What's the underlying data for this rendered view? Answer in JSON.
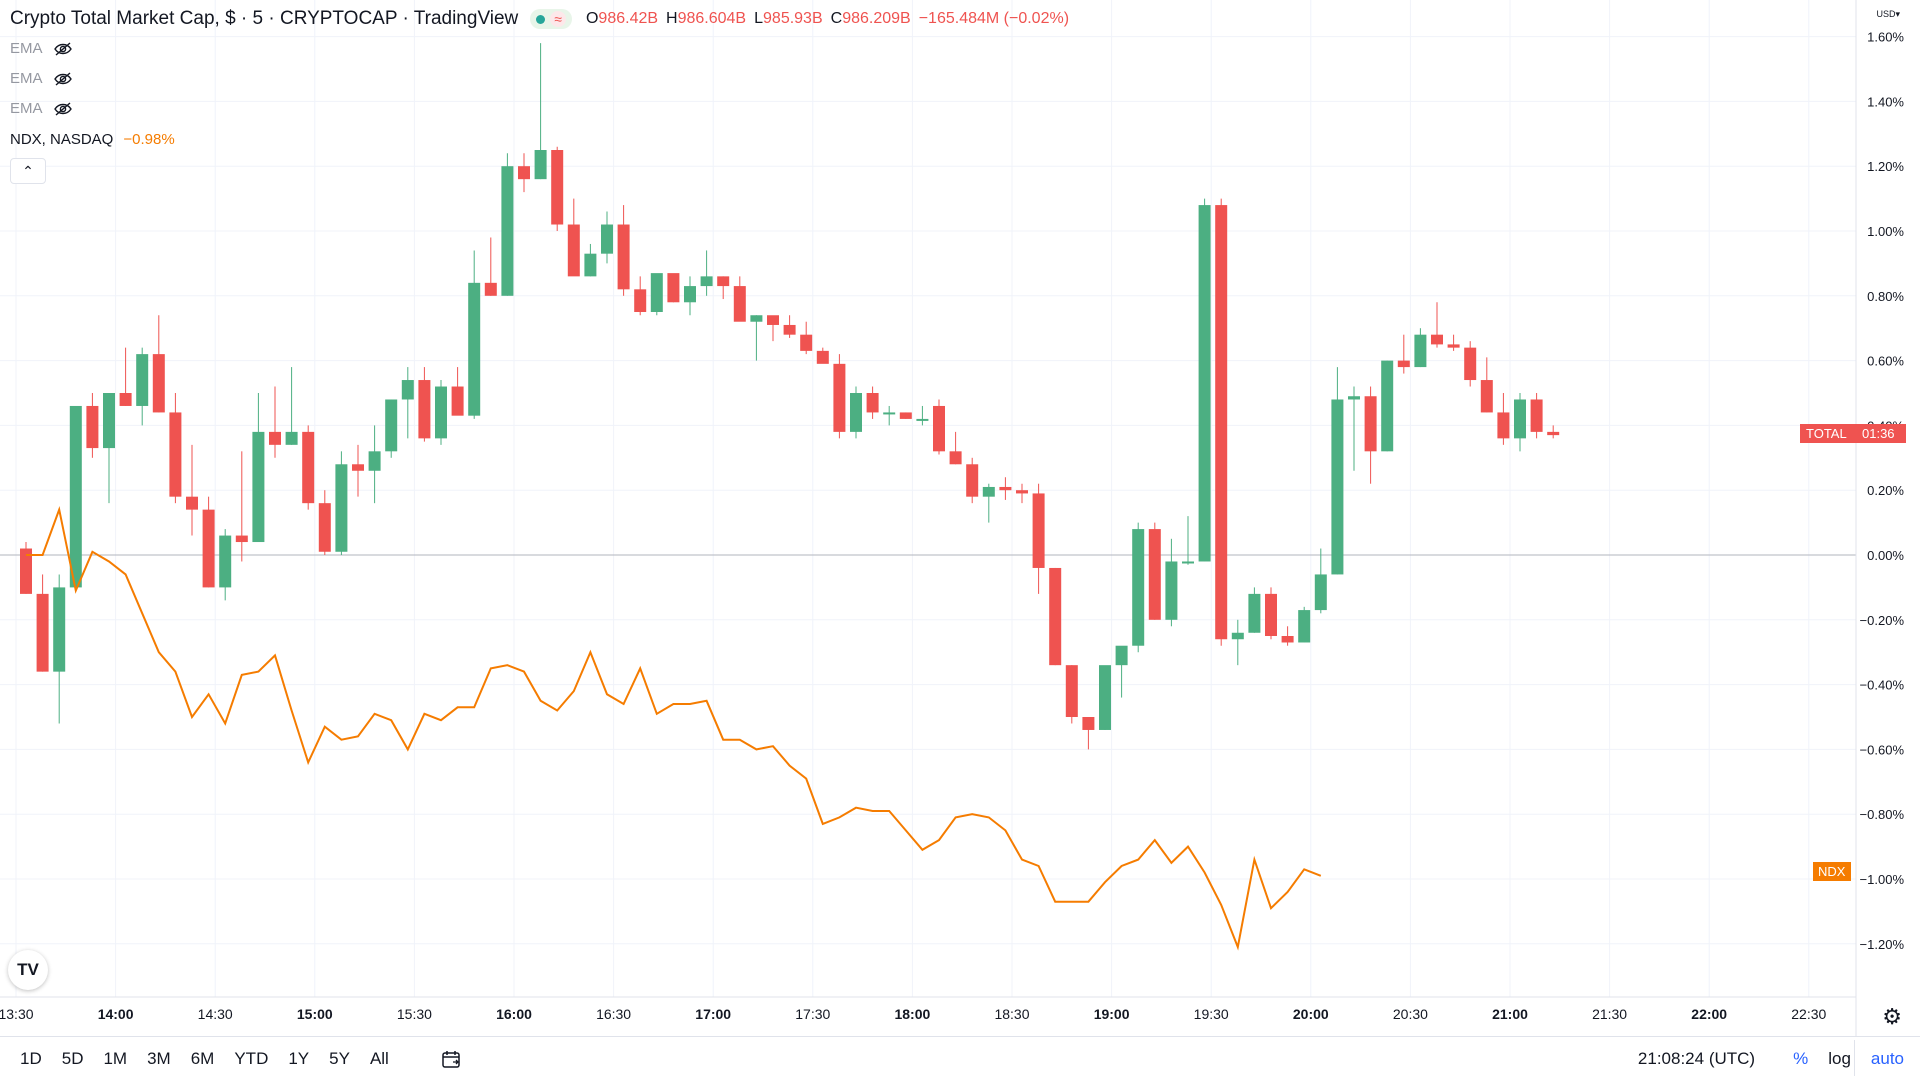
{
  "legend": {
    "title": "Crypto Total Market Cap, $ · 5 · CRYPTOCAP · TradingView",
    "ohlc": [
      {
        "label": "O",
        "value": "986.42B"
      },
      {
        "label": "H",
        "value": "986.604B"
      },
      {
        "label": "L",
        "value": "985.93B"
      },
      {
        "label": "C",
        "value": "986.209B"
      }
    ],
    "change": "−165.484M (−0.02%)",
    "indicators": [
      "EMA",
      "EMA",
      "EMA"
    ],
    "compare_symbol": "NDX, NASDAQ",
    "compare_change": "−0.98%",
    "collapse_glyph": "⌃"
  },
  "price_scale": {
    "currency": "USD",
    "labels": [
      "1.60%",
      "1.40%",
      "1.20%",
      "1.00%",
      "0.80%",
      "0.60%",
      "0.40%",
      "0.20%",
      "0.00%",
      "−0.20%",
      "−0.40%",
      "−0.60%",
      "−0.80%",
      "−1.00%",
      "−1.20%"
    ]
  },
  "time_scale": {
    "labels": [
      "13:30",
      "14:00",
      "14:30",
      "15:00",
      "15:30",
      "16:00",
      "16:30",
      "17:00",
      "17:30",
      "18:00",
      "18:30",
      "19:00",
      "19:30",
      "20:00",
      "20:30",
      "21:00",
      "21:30",
      "22:00",
      "22:30"
    ]
  },
  "badges": {
    "total_label": "TOTAL",
    "total_countdown": "01:36",
    "total_color": "#ef5350",
    "ndx_label": "NDX",
    "ndx_color": "#f57c00"
  },
  "bottom_bar": {
    "ranges": [
      "1D",
      "5D",
      "1M",
      "3M",
      "6M",
      "YTD",
      "1Y",
      "5Y",
      "All"
    ],
    "clock": "21:08:24 (UTC)",
    "pct": "%",
    "log": "log",
    "auto": "auto"
  },
  "logo_text": "TV",
  "colors": {
    "up": "#26a69a",
    "up_body": "#4caf82",
    "down": "#ef5350",
    "ndx_line": "#f57c00",
    "grid": "#f0f3fa"
  },
  "chart_data": {
    "type": "candlestick+line",
    "symbol": "TOTAL (Crypto Total Market Cap)",
    "y_unit": "% change",
    "ylim": [
      -1.3,
      1.62
    ],
    "x_start": "13:30",
    "x_step_minutes": 5,
    "candles_ohlc_pct": [
      [
        0.02,
        0.04,
        -0.12,
        -0.12
      ],
      [
        -0.12,
        -0.06,
        -0.36,
        -0.36
      ],
      [
        -0.36,
        -0.06,
        -0.52,
        -0.1
      ],
      [
        -0.1,
        0.46,
        -0.1,
        0.46
      ],
      [
        0.46,
        0.5,
        0.3,
        0.33
      ],
      [
        0.33,
        0.5,
        0.16,
        0.5
      ],
      [
        0.5,
        0.64,
        0.46,
        0.46
      ],
      [
        0.46,
        0.64,
        0.4,
        0.62
      ],
      [
        0.62,
        0.74,
        0.44,
        0.44
      ],
      [
        0.44,
        0.5,
        0.16,
        0.18
      ],
      [
        0.18,
        0.34,
        0.06,
        0.14
      ],
      [
        0.14,
        0.18,
        -0.1,
        -0.1
      ],
      [
        -0.1,
        0.08,
        -0.14,
        0.06
      ],
      [
        0.06,
        0.32,
        -0.02,
        0.04
      ],
      [
        0.04,
        0.5,
        0.04,
        0.38
      ],
      [
        0.38,
        0.52,
        0.3,
        0.34
      ],
      [
        0.34,
        0.58,
        0.34,
        0.38
      ],
      [
        0.38,
        0.4,
        0.14,
        0.16
      ],
      [
        0.16,
        0.2,
        0.0,
        0.01
      ],
      [
        0.01,
        0.32,
        0.0,
        0.28
      ],
      [
        0.28,
        0.34,
        0.18,
        0.26
      ],
      [
        0.26,
        0.4,
        0.16,
        0.32
      ],
      [
        0.32,
        0.48,
        0.3,
        0.48
      ],
      [
        0.48,
        0.58,
        0.36,
        0.54
      ],
      [
        0.54,
        0.58,
        0.35,
        0.36
      ],
      [
        0.36,
        0.54,
        0.34,
        0.52
      ],
      [
        0.52,
        0.58,
        0.44,
        0.43
      ],
      [
        0.43,
        0.94,
        0.42,
        0.84
      ],
      [
        0.84,
        0.98,
        0.8,
        0.8
      ],
      [
        0.8,
        1.24,
        0.8,
        1.2
      ],
      [
        1.2,
        1.24,
        1.12,
        1.16
      ],
      [
        1.16,
        1.58,
        1.16,
        1.25
      ],
      [
        1.25,
        1.26,
        1.0,
        1.02
      ],
      [
        1.02,
        1.1,
        0.97,
        0.86
      ],
      [
        0.86,
        0.96,
        0.86,
        0.93
      ],
      [
        0.93,
        1.06,
        0.9,
        1.02
      ],
      [
        1.02,
        1.08,
        0.8,
        0.82
      ],
      [
        0.82,
        0.86,
        0.74,
        0.75
      ],
      [
        0.75,
        0.84,
        0.74,
        0.87
      ],
      [
        0.87,
        0.86,
        0.78,
        0.78
      ],
      [
        0.78,
        0.86,
        0.74,
        0.83
      ],
      [
        0.83,
        0.94,
        0.8,
        0.86
      ],
      [
        0.86,
        0.86,
        0.79,
        0.83
      ],
      [
        0.83,
        0.86,
        0.74,
        0.72
      ],
      [
        0.72,
        0.74,
        0.6,
        0.74
      ],
      [
        0.74,
        0.72,
        0.66,
        0.71
      ],
      [
        0.71,
        0.74,
        0.67,
        0.68
      ],
      [
        0.68,
        0.72,
        0.62,
        0.63
      ],
      [
        0.63,
        0.64,
        0.6,
        0.59
      ],
      [
        0.59,
        0.62,
        0.36,
        0.38
      ],
      [
        0.38,
        0.52,
        0.36,
        0.5
      ],
      [
        0.5,
        0.52,
        0.42,
        0.44
      ],
      [
        0.44,
        0.46,
        0.4,
        0.44
      ],
      [
        0.44,
        0.44,
        0.42,
        0.42
      ],
      [
        0.42,
        0.46,
        0.4,
        0.42
      ],
      [
        0.46,
        0.48,
        0.31,
        0.32
      ],
      [
        0.32,
        0.38,
        0.28,
        0.28
      ],
      [
        0.28,
        0.3,
        0.16,
        0.18
      ],
      [
        0.18,
        0.22,
        0.1,
        0.21
      ],
      [
        0.21,
        0.24,
        0.17,
        0.2
      ],
      [
        0.2,
        0.22,
        0.16,
        0.19
      ],
      [
        0.19,
        0.22,
        -0.12,
        -0.04
      ],
      [
        -0.04,
        -0.04,
        -0.34,
        -0.34
      ],
      [
        -0.34,
        -0.34,
        -0.52,
        -0.5
      ],
      [
        -0.5,
        -0.5,
        -0.6,
        -0.54
      ],
      [
        -0.54,
        -0.38,
        -0.54,
        -0.34
      ],
      [
        -0.34,
        -0.32,
        -0.44,
        -0.28
      ],
      [
        -0.28,
        0.1,
        -0.3,
        0.08
      ],
      [
        0.08,
        0.1,
        -0.2,
        -0.2
      ],
      [
        -0.2,
        0.05,
        -0.22,
        -0.02
      ],
      [
        -0.02,
        0.12,
        -0.03,
        -0.02
      ],
      [
        -0.02,
        1.1,
        -0.02,
        1.08
      ],
      [
        1.08,
        1.1,
        -0.28,
        -0.26
      ],
      [
        -0.26,
        -0.2,
        -0.34,
        -0.24
      ],
      [
        -0.24,
        -0.1,
        -0.24,
        -0.12
      ],
      [
        -0.12,
        -0.1,
        -0.26,
        -0.25
      ],
      [
        -0.25,
        -0.22,
        -0.28,
        -0.27
      ],
      [
        -0.27,
        -0.16,
        -0.27,
        -0.17
      ],
      [
        -0.17,
        0.02,
        -0.18,
        -0.06
      ],
      [
        -0.06,
        0.58,
        -0.06,
        0.48
      ],
      [
        0.48,
        0.52,
        0.26,
        0.49
      ],
      [
        0.49,
        0.52,
        0.22,
        0.32
      ],
      [
        0.32,
        0.6,
        0.32,
        0.6
      ],
      [
        0.6,
        0.68,
        0.56,
        0.58
      ],
      [
        0.58,
        0.7,
        0.58,
        0.68
      ],
      [
        0.68,
        0.78,
        0.64,
        0.65
      ],
      [
        0.65,
        0.68,
        0.63,
        0.64
      ],
      [
        0.64,
        0.66,
        0.52,
        0.54
      ],
      [
        0.54,
        0.61,
        0.44,
        0.44
      ],
      [
        0.44,
        0.5,
        0.34,
        0.36
      ],
      [
        0.36,
        0.5,
        0.32,
        0.48
      ],
      [
        0.48,
        0.5,
        0.36,
        0.38
      ],
      [
        0.38,
        0.4,
        0.36,
        0.37
      ]
    ],
    "series": [
      {
        "name": "NDX",
        "values": [
          0.0,
          0.0,
          0.14,
          -0.11,
          0.01,
          -0.02,
          -0.06,
          -0.18,
          -0.3,
          -0.36,
          -0.5,
          -0.43,
          -0.52,
          -0.37,
          -0.36,
          -0.31,
          -0.48,
          -0.64,
          -0.53,
          -0.57,
          -0.56,
          -0.49,
          -0.51,
          -0.6,
          -0.49,
          -0.51,
          -0.47,
          -0.47,
          -0.35,
          -0.34,
          -0.36,
          -0.45,
          -0.48,
          -0.42,
          -0.3,
          -0.43,
          -0.46,
          -0.35,
          -0.49,
          -0.46,
          -0.46,
          -0.45,
          -0.57,
          -0.57,
          -0.6,
          -0.59,
          -0.65,
          -0.69,
          -0.83,
          -0.81,
          -0.78,
          -0.79,
          -0.79,
          -0.85,
          -0.91,
          -0.88,
          -0.81,
          -0.8,
          -0.81,
          -0.85,
          -0.94,
          -0.96,
          -1.07,
          -1.07,
          -1.07,
          -1.01,
          -0.96,
          -0.94,
          -0.88,
          -0.95,
          -0.9,
          -0.98,
          -1.08,
          -1.21,
          -0.94,
          -1.09,
          -1.04,
          -0.97,
          -0.99
        ]
      }
    ]
  }
}
